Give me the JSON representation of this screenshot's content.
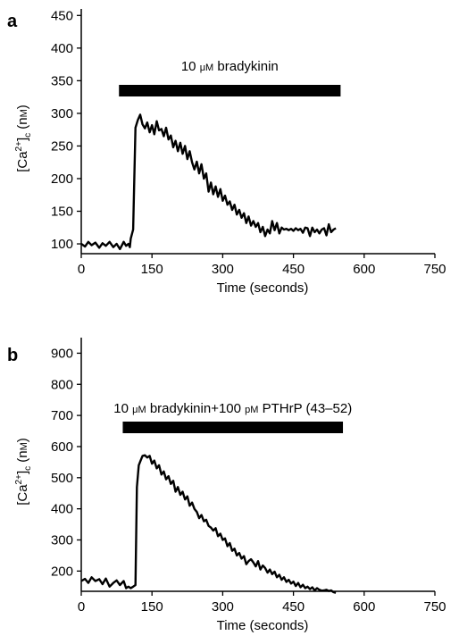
{
  "chart_data": [
    {
      "panel": "a",
      "type": "line",
      "xlabel": "Time (seconds)",
      "ylabel": {
        "prefix": "[Ca",
        "sup": "2+",
        "mid": "]",
        "sub": "c",
        "unit_open": " (n",
        "unit_sc": "M",
        "unit_close": ")"
      },
      "xlim": [
        0,
        750
      ],
      "ylim": [
        85,
        460
      ],
      "xticks": [
        0,
        150,
        300,
        450,
        600,
        750
      ],
      "yticks": [
        100,
        150,
        200,
        250,
        300,
        350,
        400,
        450
      ],
      "grid": false,
      "annotation": {
        "text_pre": "10 ",
        "text_sc": "μM",
        "text_post": " bradykinin",
        "bar_start": 80,
        "bar_end": 550
      },
      "series": [
        {
          "x": [
            0,
            8,
            15,
            22,
            30,
            38,
            45,
            52,
            60,
            68,
            75,
            82,
            90,
            95,
            100,
            103,
            105,
            110,
            115,
            120,
            125,
            130,
            135,
            140,
            145,
            150,
            155,
            160,
            165,
            170,
            175,
            180,
            185,
            190,
            195,
            200,
            205,
            210,
            215,
            220,
            225,
            230,
            235,
            240,
            245,
            250,
            255,
            260,
            265,
            270,
            275,
            280,
            285,
            290,
            295,
            300,
            305,
            310,
            315,
            320,
            325,
            330,
            335,
            340,
            345,
            350,
            355,
            360,
            365,
            370,
            375,
            380,
            385,
            390,
            395,
            400,
            405,
            410,
            415,
            420,
            425,
            430,
            435,
            440,
            445,
            450,
            455,
            460,
            465,
            470,
            475,
            480,
            485,
            490,
            495,
            500,
            505,
            510,
            515,
            520,
            525,
            530,
            535,
            540
          ],
          "y": [
            100,
            96,
            103,
            98,
            102,
            94,
            101,
            97,
            103,
            95,
            100,
            92,
            103,
            97,
            100,
            95,
            108,
            122,
            278,
            290,
            298,
            283,
            277,
            286,
            271,
            282,
            268,
            288,
            274,
            276,
            265,
            278,
            260,
            266,
            248,
            258,
            242,
            255,
            238,
            250,
            230,
            242,
            225,
            214,
            226,
            208,
            222,
            200,
            208,
            180,
            194,
            176,
            188,
            172,
            184,
            166,
            174,
            160,
            165,
            152,
            160,
            145,
            152,
            140,
            147,
            132,
            142,
            128,
            135,
            126,
            132,
            118,
            126,
            112,
            122,
            116,
            135,
            121,
            132,
            116,
            125,
            122,
            123,
            121,
            123,
            120,
            124,
            121,
            123,
            117,
            125,
            124,
            112,
            125,
            118,
            122,
            116,
            122,
            124,
            113,
            130,
            118,
            122,
            124
          ]
        }
      ]
    },
    {
      "panel": "b",
      "type": "line",
      "xlabel": "Time (seconds)",
      "ylabel": {
        "prefix": "[Ca",
        "sup": "2+",
        "mid": "]",
        "sub": "c",
        "unit_open": " (n",
        "unit_sc": "M",
        "unit_close": ")"
      },
      "xlim": [
        0,
        750
      ],
      "ylim": [
        135,
        950
      ],
      "xticks": [
        0,
        150,
        300,
        450,
        600,
        750
      ],
      "yticks": [
        200,
        300,
        400,
        500,
        600,
        700,
        800,
        900
      ],
      "grid": false,
      "annotation": {
        "text_pre": "10 ",
        "text_sc": "μM",
        "text_post": " bradykinin+100 ",
        "text_sc2": "pM",
        "text_post2": " PTHrP (43–52)",
        "bar_start": 88,
        "bar_end": 555
      },
      "series": [
        {
          "x": [
            0,
            8,
            15,
            22,
            30,
            38,
            45,
            52,
            60,
            68,
            75,
            82,
            90,
            95,
            100,
            105,
            110,
            115,
            118,
            122,
            126,
            130,
            135,
            140,
            145,
            150,
            155,
            160,
            165,
            170,
            175,
            180,
            185,
            190,
            195,
            200,
            205,
            210,
            215,
            220,
            225,
            230,
            235,
            240,
            245,
            250,
            255,
            260,
            265,
            270,
            275,
            280,
            285,
            290,
            295,
            300,
            305,
            310,
            315,
            320,
            325,
            330,
            335,
            340,
            345,
            350,
            355,
            360,
            365,
            370,
            375,
            380,
            385,
            390,
            395,
            400,
            405,
            410,
            415,
            420,
            425,
            430,
            435,
            440,
            445,
            450,
            455,
            460,
            465,
            470,
            475,
            480,
            485,
            490,
            495,
            500,
            505,
            510,
            515,
            520,
            525,
            530,
            535,
            540
          ],
          "y": [
            168,
            175,
            162,
            180,
            168,
            174,
            158,
            176,
            150,
            162,
            170,
            155,
            168,
            145,
            150,
            145,
            150,
            155,
            470,
            540,
            555,
            570,
            572,
            565,
            570,
            545,
            555,
            530,
            540,
            510,
            520,
            495,
            505,
            480,
            490,
            455,
            470,
            445,
            455,
            430,
            440,
            410,
            420,
            400,
            390,
            370,
            380,
            360,
            365,
            345,
            340,
            330,
            338,
            312,
            320,
            300,
            305,
            280,
            290,
            265,
            272,
            250,
            258,
            240,
            248,
            222,
            232,
            238,
            228,
            215,
            232,
            205,
            218,
            210,
            195,
            205,
            190,
            198,
            180,
            188,
            172,
            180,
            165,
            172,
            160,
            166,
            152,
            162,
            148,
            156,
            145,
            150,
            142,
            148,
            138,
            145,
            140,
            137,
            138,
            140,
            136,
            138,
            132,
            130
          ]
        }
      ]
    }
  ]
}
